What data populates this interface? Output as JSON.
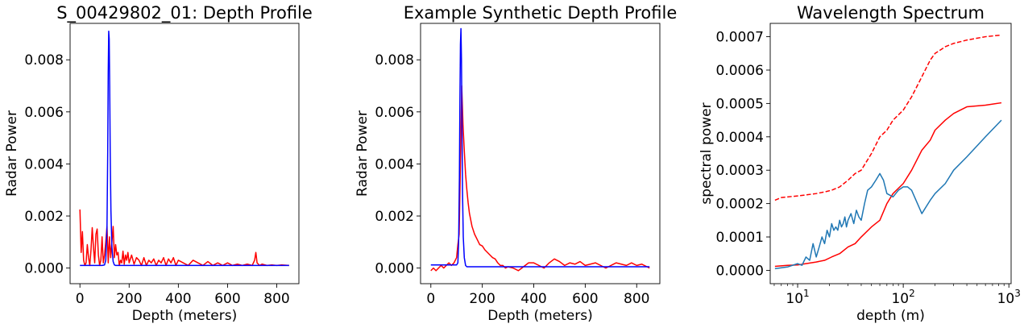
{
  "chart_data": [
    {
      "type": "line",
      "title": "S_00429802_01: Depth Profile",
      "xlabel": "Depth (meters)",
      "ylabel": "Radar Power",
      "xlim": [
        -40,
        890
      ],
      "ylim": [
        -0.0006,
        0.0094
      ],
      "xscale": "linear",
      "xticks": [
        0,
        200,
        400,
        600,
        800
      ],
      "xtick_labels": [
        "0",
        "200",
        "400",
        "600",
        "800"
      ],
      "yticks": [
        0,
        0.002,
        0.004,
        0.006,
        0.008
      ],
      "ytick_labels": [
        "0.000",
        "0.002",
        "0.004",
        "0.006",
        "0.008"
      ],
      "grid": false,
      "series": [
        {
          "color": "#ff0000",
          "x": [
            0,
            5,
            10,
            15,
            20,
            25,
            30,
            35,
            40,
            45,
            50,
            55,
            60,
            65,
            70,
            75,
            80,
            85,
            90,
            95,
            100,
            105,
            110,
            115,
            120,
            125,
            130,
            135,
            140,
            145,
            150,
            155,
            160,
            165,
            170,
            175,
            180,
            185,
            190,
            195,
            200,
            210,
            220,
            230,
            240,
            250,
            260,
            270,
            280,
            290,
            300,
            310,
            320,
            330,
            340,
            350,
            360,
            370,
            380,
            390,
            400,
            420,
            440,
            460,
            480,
            500,
            520,
            540,
            560,
            580,
            600,
            620,
            640,
            660,
            680,
            700,
            710,
            715,
            720,
            730,
            740,
            760,
            780,
            800,
            820,
            850
          ],
          "y": [
            0.00225,
            0.0006,
            0.0014,
            0.0003,
            0.0001,
            0.0002,
            0.0009,
            0.0004,
            0.0001,
            0.0007,
            0.00155,
            0.0008,
            0.0002,
            0.0013,
            0.0015,
            0.0005,
            0.0001,
            0.0003,
            0.0012,
            0.0002,
            0.0005,
            0.001,
            0.0016,
            0.0002,
            0.0012,
            0.0004,
            0.001,
            0.0016,
            0.0004,
            0.0009,
            0.0005,
            0.0006,
            0.0001,
            0.0003,
            0.0002,
            0.00065,
            0.00015,
            0.0005,
            0.0003,
            0.0006,
            0.0002,
            0.0005,
            0.00015,
            0.0004,
            0.0003,
            0.0001,
            0.0004,
            0.0001,
            0.0003,
            0.0002,
            0.00035,
            0.0001,
            0.0003,
            0.0002,
            0.0004,
            0.0001,
            0.00035,
            0.0002,
            0.0004,
            0.0001,
            0.0003,
            0.0002,
            0.0001,
            0.0003,
            0.0002,
            0.0001,
            0.00025,
            0.0001,
            0.0002,
            0.0001,
            0.0002,
            0.0001,
            0.00015,
            0.0001,
            0.00015,
            0.0001,
            0.0003,
            0.0006,
            0.0002,
            0.0001,
            0.00015,
            0.0001,
            0.00012,
            0.0001,
            0.00012,
            0.0001
          ]
        },
        {
          "color": "#0000ff",
          "x": [
            0,
            90,
            100,
            105,
            110,
            113,
            115,
            117,
            119,
            121,
            123,
            126,
            130,
            135,
            140,
            145,
            150,
            200,
            400,
            600,
            850
          ],
          "y": [
            0.0001,
            0.0001,
            0.00012,
            0.0003,
            0.0016,
            0.0045,
            0.0075,
            0.0091,
            0.0088,
            0.007,
            0.0045,
            0.0022,
            0.0008,
            0.00025,
            0.00012,
            0.0001,
            0.0001,
            0.0001,
            0.0001,
            0.0001,
            0.0001
          ]
        }
      ]
    },
    {
      "type": "line",
      "title": "Example Synthetic Depth Profile",
      "xlabel": "Depth (meters)",
      "ylabel": "Radar Power",
      "xlim": [
        -40,
        890
      ],
      "ylim": [
        -0.0006,
        0.0094
      ],
      "xscale": "linear",
      "xticks": [
        0,
        200,
        400,
        600,
        800
      ],
      "xtick_labels": [
        "0",
        "200",
        "400",
        "600",
        "800"
      ],
      "yticks": [
        0,
        0.002,
        0.004,
        0.006,
        0.008
      ],
      "ytick_labels": [
        "0.000",
        "0.002",
        "0.004",
        "0.006",
        "0.008"
      ],
      "grid": false,
      "series": [
        {
          "color": "#ff0000",
          "x": [
            0,
            10,
            20,
            30,
            40,
            50,
            60,
            70,
            80,
            90,
            100,
            105,
            110,
            115,
            120,
            125,
            130,
            135,
            140,
            145,
            150,
            160,
            170,
            180,
            190,
            200,
            210,
            220,
            230,
            240,
            250,
            260,
            270,
            280,
            290,
            300,
            320,
            340,
            360,
            380,
            400,
            420,
            440,
            460,
            480,
            500,
            520,
            540,
            560,
            580,
            600,
            620,
            640,
            660,
            680,
            700,
            720,
            740,
            760,
            780,
            800,
            820,
            840,
            850
          ],
          "y": [
            -0.0001,
            0.0,
            -0.0001,
            0.0,
            0.0001,
            0.0,
            0.0001,
            0.0002,
            0.0001,
            0.0002,
            0.0004,
            0.0009,
            0.0013,
            0.004,
            0.007,
            0.0055,
            0.0045,
            0.0036,
            0.003,
            0.0025,
            0.0021,
            0.0016,
            0.0013,
            0.0011,
            0.0009,
            0.00085,
            0.0007,
            0.0006,
            0.0005,
            0.0004,
            0.00035,
            0.0002,
            0.0001,
            0.0001,
            0.0,
            5e-05,
            0.0,
            -0.0001,
            5e-05,
            0.0002,
            0.0002,
            0.0001,
            0.0,
            0.0002,
            0.00035,
            0.00025,
            0.0001,
            0.0002,
            0.00015,
            0.00025,
            0.0001,
            0.00015,
            0.0002,
            0.0001,
            0.0,
            0.0001,
            0.0002,
            0.00015,
            0.0001,
            0.0002,
            0.0001,
            0.00015,
            5e-05,
            0.0
          ]
        },
        {
          "color": "#0000ff",
          "x": [
            0,
            100,
            105,
            108,
            111,
            113,
            115,
            117,
            119,
            121,
            123,
            126,
            130,
            135,
            140,
            150,
            200,
            400,
            600,
            850
          ],
          "y": [
            0.00012,
            0.00012,
            0.0002,
            0.001,
            0.0035,
            0.0065,
            0.0086,
            0.0092,
            0.008,
            0.0055,
            0.003,
            0.0012,
            0.0004,
            0.0001,
            5e-05,
            5e-05,
            5e-05,
            5e-05,
            5e-05,
            5e-05
          ]
        }
      ]
    },
    {
      "type": "line",
      "title": "Wavelength Spectrum",
      "xlabel": "depth (m)",
      "ylabel": "spectral power",
      "xlim": [
        5.5,
        1050
      ],
      "ylim": [
        -4e-05,
        0.00074
      ],
      "xscale": "log",
      "xticks": [
        10,
        100,
        1000
      ],
      "xtick_labels": [
        "10",
        "10",
        "10"
      ],
      "xtick_exponents": [
        "1",
        "2",
        "3"
      ],
      "yticks": [
        0,
        0.0001,
        0.0002,
        0.0003,
        0.0004,
        0.0005,
        0.0006,
        0.0007
      ],
      "ytick_labels": [
        "0.0000",
        "0.0001",
        "0.0002",
        "0.0003",
        "0.0004",
        "0.0005",
        "0.0006",
        "0.0007"
      ],
      "grid": false,
      "series": [
        {
          "color": "#ff0000",
          "dash": "dashed",
          "x": [
            6.1,
            7,
            8,
            10,
            12,
            15,
            18,
            21,
            25,
            30,
            35,
            40,
            50,
            60,
            70,
            80,
            100,
            120,
            150,
            180,
            200,
            250,
            300,
            400,
            600,
            850
          ],
          "y": [
            0.00021,
            0.000218,
            0.00022,
            0.000223,
            0.000226,
            0.00023,
            0.000235,
            0.00024,
            0.00025,
            0.00027,
            0.00029,
            0.0003,
            0.00035,
            0.0004,
            0.00042,
            0.00045,
            0.00048,
            0.00052,
            0.00058,
            0.00063,
            0.00065,
            0.00067,
            0.00068,
            0.00069,
            0.0007,
            0.000705
          ]
        },
        {
          "color": "#ff0000",
          "dash": "solid",
          "x": [
            6.1,
            8,
            10,
            12,
            15,
            18,
            21,
            25,
            30,
            35,
            40,
            50,
            60,
            70,
            80,
            100,
            120,
            150,
            180,
            200,
            250,
            300,
            400,
            600,
            850
          ],
          "y": [
            1.2e-05,
            1.5e-05,
            1.6e-05,
            2e-05,
            2.5e-05,
            3e-05,
            4e-05,
            5e-05,
            7e-05,
            8e-05,
            0.0001,
            0.00013,
            0.00015,
            0.0002,
            0.00023,
            0.00026,
            0.0003,
            0.00036,
            0.00039,
            0.00042,
            0.00045,
            0.00047,
            0.00049,
            0.000495,
            0.000502
          ]
        },
        {
          "color": "#1f77b4",
          "dash": "solid",
          "x": [
            6.1,
            8,
            10,
            11,
            12,
            13,
            14,
            15,
            16,
            17,
            18,
            19,
            20,
            21,
            22,
            23,
            24,
            25,
            26,
            27,
            28,
            29,
            30,
            32,
            34,
            36,
            38,
            40,
            43,
            46,
            50,
            55,
            60,
            65,
            70,
            80,
            90,
            100,
            110,
            120,
            150,
            180,
            200,
            250,
            300,
            400,
            600,
            850
          ],
          "y": [
            5e-06,
            1e-05,
            2e-05,
            1.5e-05,
            4e-05,
            3e-05,
            8e-05,
            4e-05,
            7e-05,
            0.0001,
            8e-05,
            0.00012,
            0.0001,
            0.00014,
            0.00012,
            0.00013,
            0.00012,
            0.00015,
            0.00013,
            0.00014,
            0.00016,
            0.00013,
            0.00015,
            0.00017,
            0.00014,
            0.00018,
            0.00016,
            0.00015,
            0.0002,
            0.00024,
            0.00025,
            0.00027,
            0.00029,
            0.00027,
            0.00023,
            0.00022,
            0.00024,
            0.00025,
            0.00025,
            0.00024,
            0.00017,
            0.00021,
            0.00023,
            0.00026,
            0.0003,
            0.00034,
            0.0004,
            0.00045
          ]
        }
      ]
    }
  ]
}
